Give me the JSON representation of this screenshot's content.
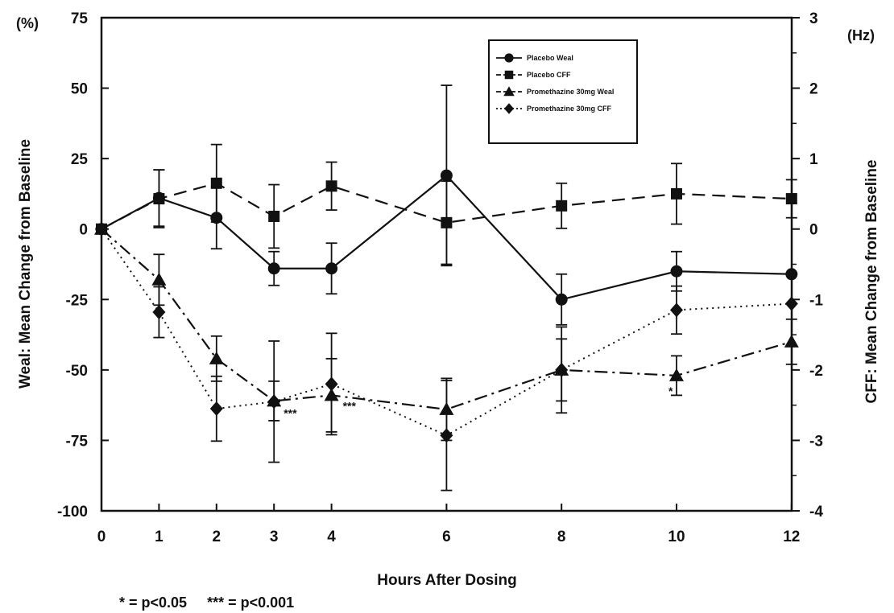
{
  "chart_data": {
    "type": "line",
    "xlabel": "Hours After Dosing",
    "ylabel_left": "Weal: Mean Change from Baseline",
    "ylabel_right": "CFF: Mean Change from Baseline",
    "left_unit": "(%)",
    "right_unit": "(Hz)",
    "x_ticks": [
      "0",
      "1",
      "2",
      "3",
      "4",
      "6",
      "8",
      "10",
      "12"
    ],
    "y_left_ticks": [
      "75",
      "50",
      "25",
      "0",
      "-25",
      "-50",
      "-75",
      "-100"
    ],
    "y_right_ticks": [
      "3",
      "2",
      "1",
      "0",
      "-1",
      "-2",
      "-3",
      "-4"
    ],
    "ylim_left": [
      -100,
      75
    ],
    "ylim_right": [
      -4,
      3
    ],
    "legend_position": "top-right",
    "series": [
      {
        "name": "Placebo Weal",
        "axis": "left",
        "marker": "circle",
        "line_style": "solid",
        "points": [
          {
            "x": "0",
            "y": 0,
            "err": 0
          },
          {
            "x": "1",
            "y": 11,
            "err": 10
          },
          {
            "x": "2",
            "y": 4,
            "err": 11
          },
          {
            "x": "3",
            "y": -14,
            "err": 6
          },
          {
            "x": "4",
            "y": -14,
            "err": 9
          },
          {
            "x": "6",
            "y": 19,
            "err": 32
          },
          {
            "x": "8",
            "y": -25,
            "err": 9
          },
          {
            "x": "10",
            "y": -15,
            "err": 7
          },
          {
            "x": "12",
            "y": -16,
            "err": 0
          }
        ]
      },
      {
        "name": "Placebo CFF",
        "axis": "right",
        "marker": "square",
        "line_style": "dashed",
        "points": [
          {
            "x": "0",
            "y": 0,
            "err": 0
          },
          {
            "x": "1",
            "y": 0.43,
            "err": 0.41
          },
          {
            "x": "2",
            "y": 0.65,
            "err": 0.55
          },
          {
            "x": "3",
            "y": 0.18,
            "err": 0.45
          },
          {
            "x": "4",
            "y": 0.61,
            "err": 0.34
          },
          {
            "x": "6",
            "y": 0.09,
            "err": 0.59
          },
          {
            "x": "8",
            "y": 0.33,
            "err": 0.32
          },
          {
            "x": "10",
            "y": 0.5,
            "err": 0.43
          },
          {
            "x": "12",
            "y": 0.43,
            "err": 0.27
          }
        ]
      },
      {
        "name": "Promethazine 30mg Weal",
        "axis": "left",
        "marker": "triangle",
        "line_style": "dash-dot",
        "points": [
          {
            "x": "0",
            "y": 0,
            "err": 0
          },
          {
            "x": "1",
            "y": -18,
            "err": 9
          },
          {
            "x": "2",
            "y": -46,
            "err": 8
          },
          {
            "x": "3",
            "y": -61,
            "err": 7
          },
          {
            "x": "4",
            "y": -59,
            "err": 13
          },
          {
            "x": "6",
            "y": -64,
            "err": 11
          },
          {
            "x": "8",
            "y": -50,
            "err": 11
          },
          {
            "x": "10",
            "y": -52,
            "err": 7
          },
          {
            "x": "12",
            "y": -40,
            "err": 8
          }
        ]
      },
      {
        "name": "Promethazine 30mg CFF",
        "axis": "right",
        "marker": "diamond",
        "line_style": "dotted",
        "points": [
          {
            "x": "0",
            "y": 0,
            "err": 0
          },
          {
            "x": "1",
            "y": -1.18,
            "err": 0.36
          },
          {
            "x": "2",
            "y": -2.55,
            "err": 0.46
          },
          {
            "x": "3",
            "y": -2.45,
            "err": 0.86
          },
          {
            "x": "4",
            "y": -2.2,
            "err": 0.72
          },
          {
            "x": "6",
            "y": -2.93,
            "err": 0.78
          },
          {
            "x": "8",
            "y": -2.0,
            "err": 0.61
          },
          {
            "x": "10",
            "y": -1.15,
            "err": 0.34
          },
          {
            "x": "12",
            "y": -1.06,
            "err": 0
          }
        ]
      }
    ],
    "annotations": [
      {
        "text": "***",
        "x": "3"
      },
      {
        "text": "***",
        "x": "4"
      },
      {
        "text": "*",
        "x": "10"
      }
    ],
    "footnote": "* = p<0.05     *** = p<0.001"
  }
}
